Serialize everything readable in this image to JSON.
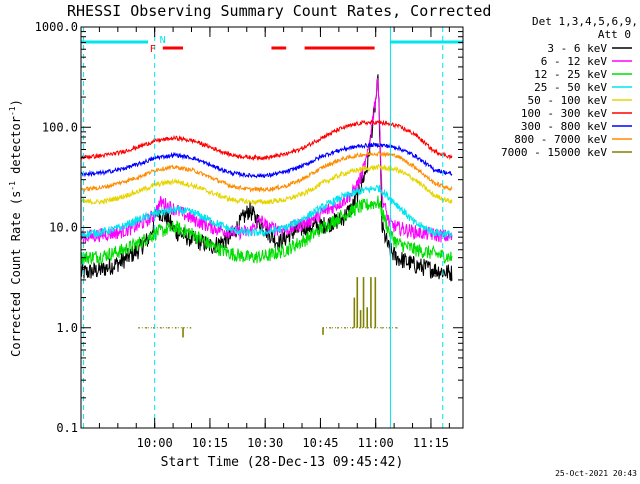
{
  "chart_data": {
    "type": "line",
    "title": "RHESSI Observing Summary Count Rates, Corrected",
    "xlabel": "Start Time (28-Dec-13 09:45:42)",
    "ylabel_main": "Corrected Count Rate (s",
    "ylabel_sup1": "-1",
    "ylabel_mid": " detector",
    "ylabel_sup2": "-1",
    "ylabel_end": ")",
    "xlim": [
      -5.7,
      98.0
    ],
    "ylim": [
      0.1,
      1000
    ],
    "yscale": "log",
    "x_ticks": [
      {
        "value": 14.3,
        "label": "10:00"
      },
      {
        "value": 29.3,
        "label": "10:15"
      },
      {
        "value": 44.3,
        "label": "10:30"
      },
      {
        "value": 59.3,
        "label": "10:45"
      },
      {
        "value": 74.3,
        "label": "11:00"
      },
      {
        "value": 89.3,
        "label": "11:15"
      }
    ],
    "y_ticks": [
      {
        "value": 0.1,
        "label": "0.1"
      },
      {
        "value": 1,
        "label": "1.0"
      },
      {
        "value": 10,
        "label": "10.0"
      },
      {
        "value": 100,
        "label": "100.0"
      },
      {
        "value": 1000,
        "label": "1000.0"
      }
    ],
    "legend": {
      "placement": "right",
      "header": [
        "Det 1,3,4,5,6,9,",
        "Att 0"
      ],
      "entries": [
        {
          "label": "3 - 6 keV",
          "color": "#000000"
        },
        {
          "label": "6 - 12 keV",
          "color": "#ff00ff"
        },
        {
          "label": "12 - 25 keV",
          "color": "#00dd00"
        },
        {
          "label": "25 - 50 keV",
          "color": "#00e5ee"
        },
        {
          "label": "50 - 100 keV",
          "color": "#e6d500"
        },
        {
          "label": "100 - 300 keV",
          "color": "#ff0000"
        },
        {
          "label": "300 - 800 keV",
          "color": "#0000ff"
        },
        {
          "label": "800 - 7000 keV",
          "color": "#ff8c00"
        },
        {
          "label": "7000 - 15000 keV",
          "color": "#808000"
        }
      ]
    },
    "series": [
      {
        "name": "100 - 300 keV",
        "color": "#ff0000",
        "x": [
          -5.7,
          0,
          5,
          10,
          15,
          20,
          25,
          30,
          35,
          40,
          45,
          50,
          55,
          60,
          65,
          70,
          75,
          80,
          85,
          90,
          95
        ],
        "y": [
          50,
          52,
          56,
          64,
          74,
          78,
          73,
          62,
          53,
          50,
          50,
          54,
          63,
          80,
          98,
          110,
          112,
          104,
          85,
          58,
          50
        ]
      },
      {
        "name": "300 - 800 keV",
        "color": "#0000ff",
        "x": [
          -5.7,
          0,
          5,
          10,
          15,
          20,
          25,
          30,
          35,
          40,
          45,
          50,
          55,
          60,
          65,
          70,
          75,
          80,
          85,
          90,
          95
        ],
        "y": [
          34,
          35,
          38,
          43,
          50,
          53,
          49,
          41,
          35,
          33,
          33,
          36,
          42,
          52,
          60,
          65,
          67,
          63,
          52,
          38,
          34
        ]
      },
      {
        "name": "800 - 7000 keV",
        "color": "#ff8c00",
        "x": [
          -5.7,
          0,
          5,
          10,
          15,
          20,
          25,
          30,
          35,
          40,
          45,
          50,
          55,
          60,
          65,
          70,
          75,
          80,
          85,
          90,
          95
        ],
        "y": [
          24,
          25,
          28,
          32,
          38,
          40,
          37,
          31,
          26,
          24,
          24,
          26,
          31,
          40,
          48,
          53,
          55,
          52,
          40,
          28,
          24
        ]
      },
      {
        "name": "50 - 100 keV",
        "color": "#e6d500",
        "x": [
          -5.7,
          0,
          5,
          10,
          15,
          20,
          25,
          30,
          35,
          40,
          45,
          50,
          55,
          60,
          65,
          70,
          75,
          80,
          85,
          90,
          95
        ],
        "y": [
          18,
          18,
          20,
          23,
          27,
          29,
          26,
          22,
          19,
          18,
          18,
          19,
          22,
          28,
          34,
          38,
          40,
          38,
          30,
          21,
          18
        ]
      },
      {
        "name": "25 - 50 keV",
        "color": "#00e5ee",
        "x": [
          -5.7,
          0,
          5,
          10,
          15,
          20,
          25,
          30,
          35,
          40,
          45,
          50,
          55,
          60,
          65,
          70,
          75,
          80,
          85,
          90,
          95
        ],
        "y": [
          8.5,
          9,
          10,
          12,
          14,
          15,
          14,
          11.5,
          9.5,
          8.8,
          9,
          10,
          12.5,
          16,
          20,
          23,
          25,
          17,
          11,
          9,
          8.5
        ]
      },
      {
        "name": "6 - 12 keV",
        "color": "#ff00ff",
        "x": [
          -5.7,
          0,
          5,
          10,
          14,
          16,
          20,
          25,
          30,
          35,
          40,
          43,
          45,
          50,
          55,
          60,
          65,
          68,
          70,
          72,
          73,
          74,
          75,
          76,
          78,
          80,
          85,
          90,
          95
        ],
        "y": [
          8,
          8.5,
          9,
          10.5,
          13,
          18,
          15,
          12,
          10,
          9,
          9,
          12,
          10,
          9.5,
          11,
          14,
          18,
          22,
          30,
          50,
          90,
          170,
          300,
          20,
          11,
          10,
          9,
          8.5,
          8
        ]
      },
      {
        "name": "12 - 25 keV",
        "color": "#00dd00",
        "x": [
          -5.7,
          0,
          5,
          10,
          15,
          20,
          25,
          30,
          35,
          40,
          45,
          50,
          55,
          60,
          65,
          70,
          75,
          78,
          80,
          85,
          90,
          95
        ],
        "y": [
          5,
          5.2,
          5.8,
          7,
          9,
          10,
          8.5,
          6.5,
          5.5,
          5,
          5.2,
          6,
          7.5,
          10,
          13,
          16,
          18,
          9,
          7,
          6,
          5.5,
          5
        ]
      },
      {
        "name": "3 - 6 keV",
        "color": "#000000",
        "x": [
          -5.7,
          0,
          5,
          10,
          13,
          15,
          18,
          20,
          25,
          30,
          35,
          38,
          40,
          42,
          45,
          48,
          52,
          55,
          60,
          65,
          68,
          70,
          72,
          73,
          74,
          75,
          76,
          78,
          80,
          85,
          90,
          95
        ],
        "y": [
          3.5,
          3.8,
          4.5,
          6,
          8,
          15,
          12,
          9,
          7.5,
          6.5,
          8,
          12,
          15,
          12,
          9,
          7,
          9,
          10,
          10.5,
          12,
          16,
          25,
          40,
          80,
          150,
          300,
          10,
          6,
          5,
          4.2,
          3.8,
          3.5
        ]
      },
      {
        "name": "7000 - 15000 keV",
        "color": "#808000",
        "x": [
          10,
          12,
          14,
          16,
          18,
          20,
          22,
          24,
          60,
          62,
          64,
          66,
          68,
          70,
          72,
          74,
          76,
          78,
          80
        ],
        "y": [
          1.0,
          1.0,
          1.0,
          1.0,
          1.0,
          1.0,
          1.0,
          1.0,
          1.0,
          1.0,
          1.0,
          1.0,
          1.0,
          1.0,
          1.0,
          1.0,
          1.0,
          1.0,
          1.0
        ]
      }
    ],
    "olive_spikes": [
      {
        "x": 22.0,
        "y0": 0.8,
        "y1": 1.0
      },
      {
        "x": 60.0,
        "y0": 0.85,
        "y1": 1.0
      },
      {
        "x": 68.5,
        "y0": 1.0,
        "y1": 2.0
      },
      {
        "x": 69.3,
        "y0": 1.0,
        "y1": 3.2
      },
      {
        "x": 70.2,
        "y0": 1.0,
        "y1": 1.5
      },
      {
        "x": 71.0,
        "y0": 1.0,
        "y1": 3.2
      },
      {
        "x": 72.0,
        "y0": 1.0,
        "y1": 1.6
      },
      {
        "x": 73.0,
        "y0": 1.0,
        "y1": 3.2
      },
      {
        "x": 74.2,
        "y0": 1.0,
        "y1": 3.2
      }
    ],
    "markers": {
      "night_bars": [
        [
          -5.7,
          12.5
        ],
        [
          78.2,
          98.0
        ]
      ],
      "flare_bars": [
        [
          16.5,
          22.0
        ],
        [
          46.0,
          50.0
        ],
        [
          55.0,
          74.0
        ]
      ],
      "flare_label": "F",
      "saa_label": "N",
      "dashed_lines": [
        -5.0,
        14.3,
        92.5
      ],
      "solid_lines": [
        78.3
      ]
    },
    "timestamp": "25-Oct-2021 20:43"
  }
}
